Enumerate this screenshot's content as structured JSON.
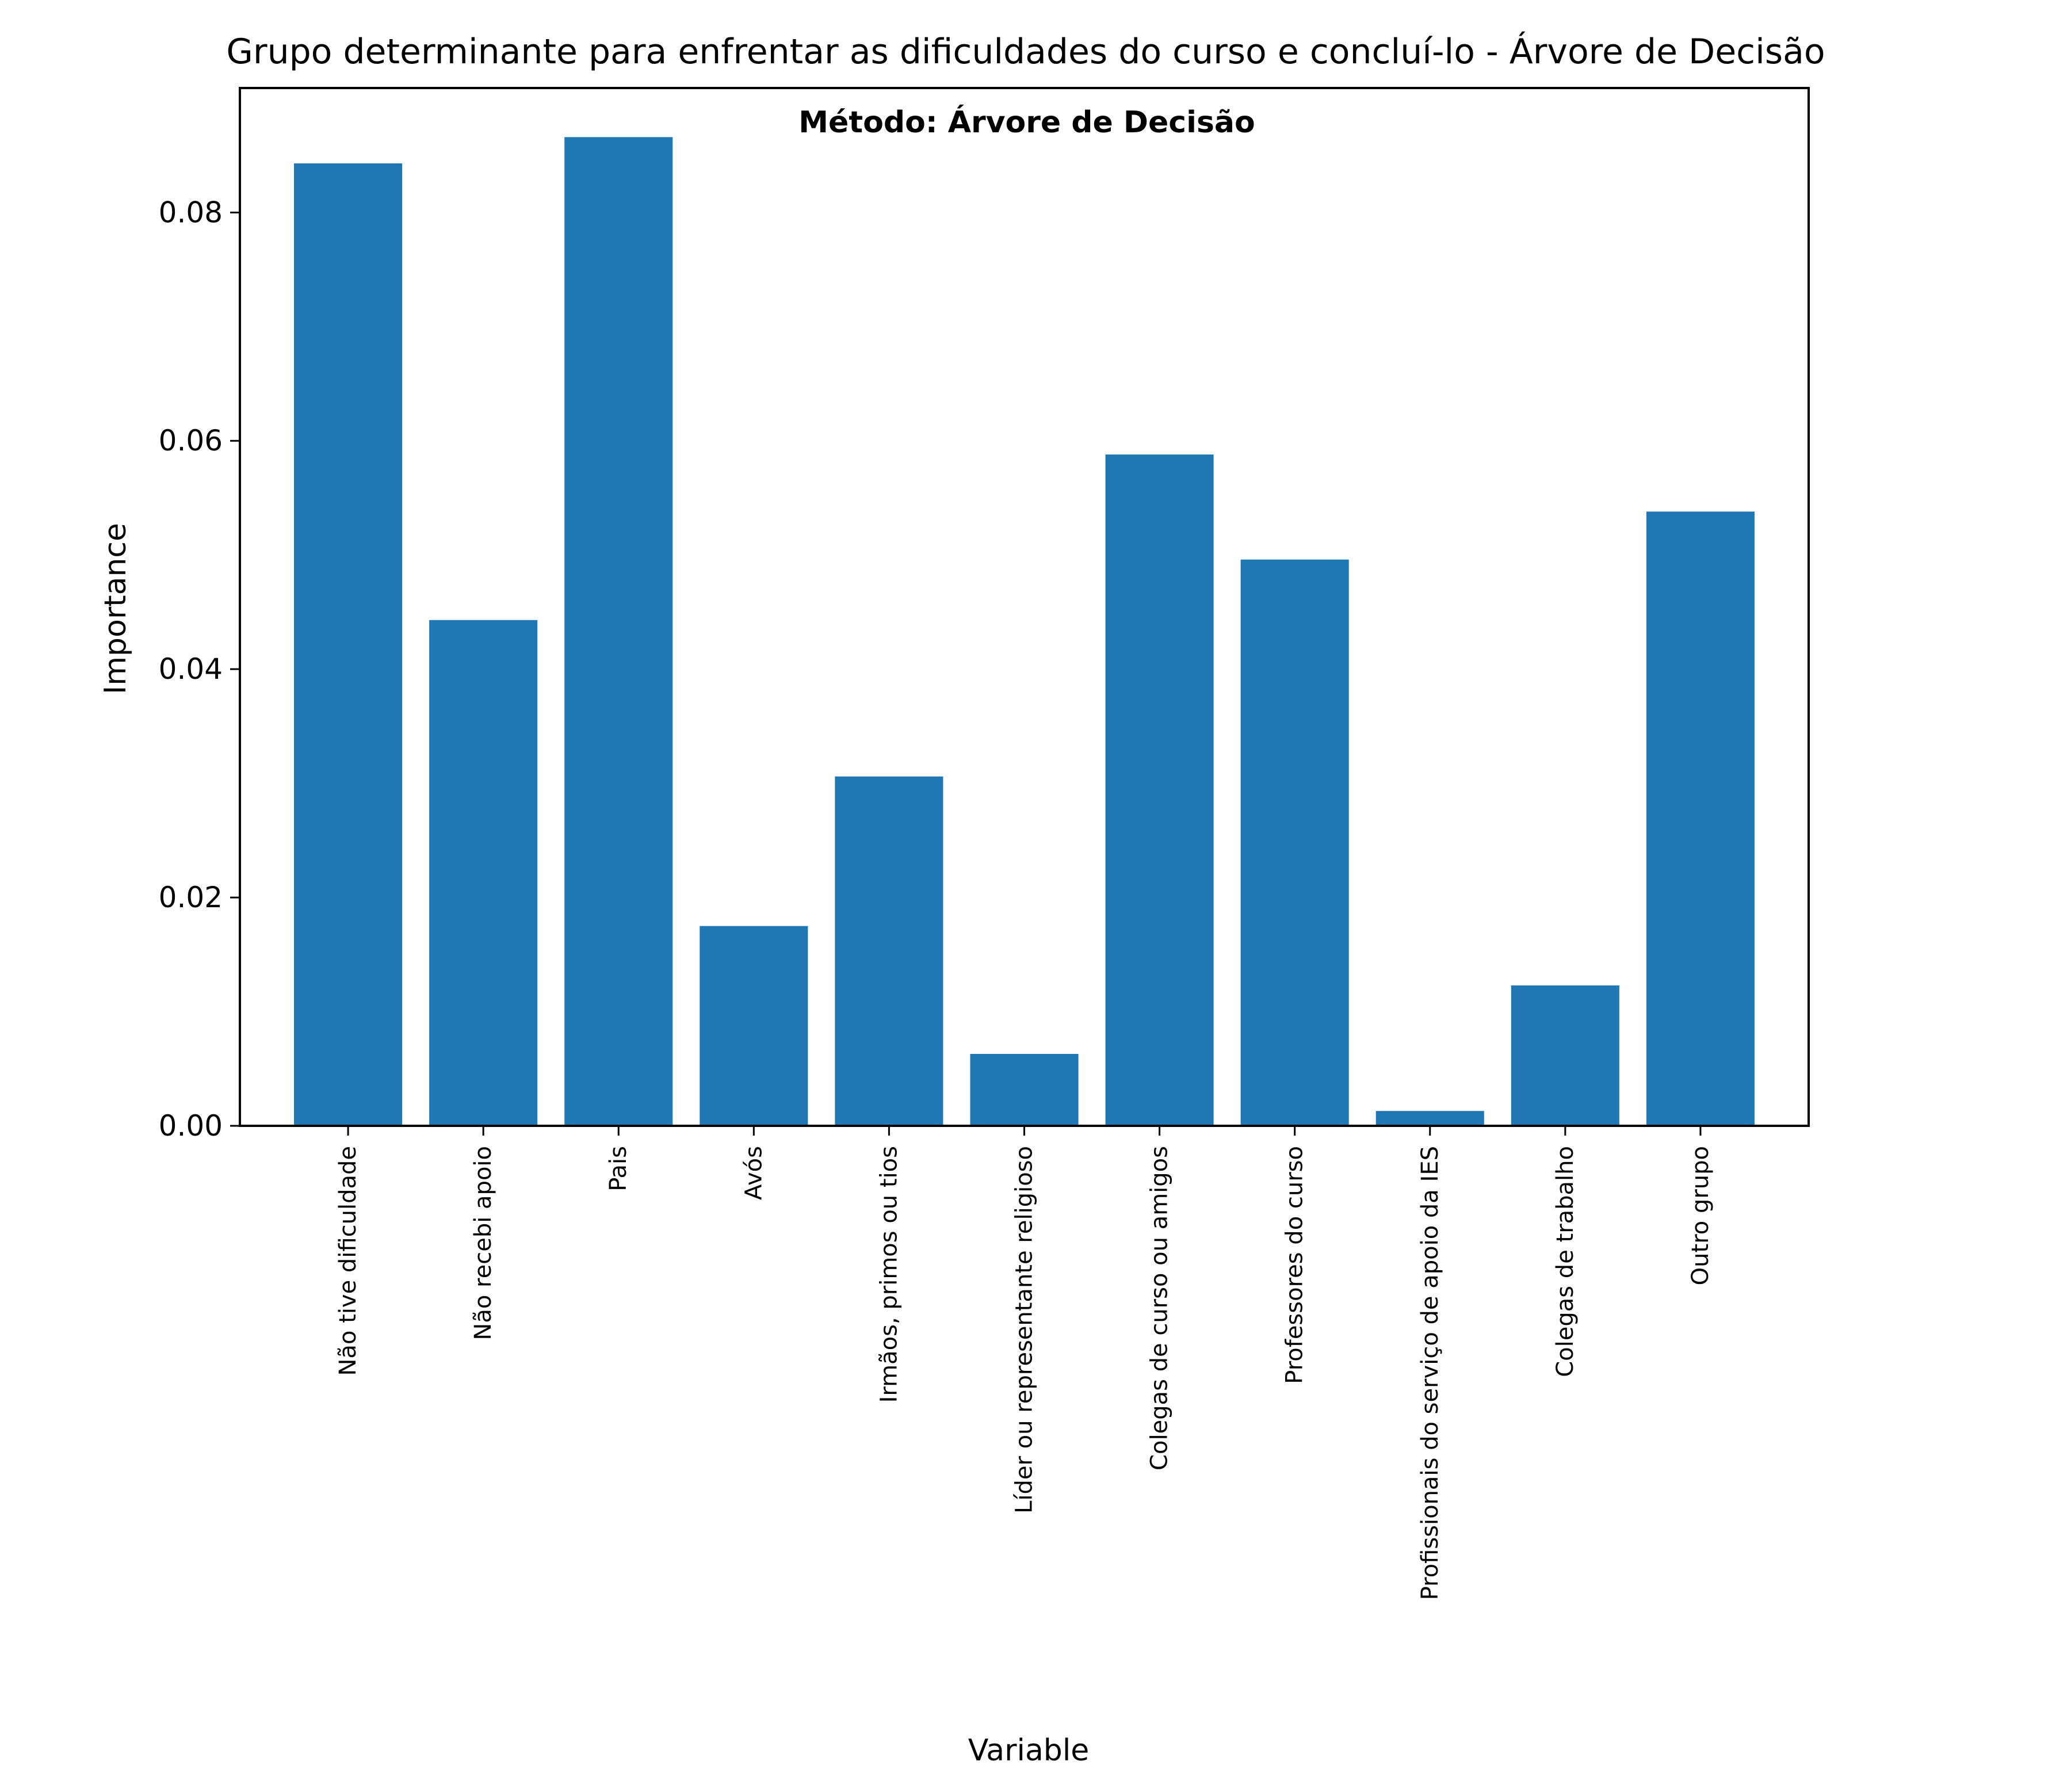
{
  "chart_data": {
    "type": "bar",
    "title": "Grupo determinante para enfrentar as dificuldades do curso e concluí-lo - Árvore de Decisão",
    "annotation": "Método: Árvore de Decisão",
    "xlabel": "Variable",
    "ylabel": "Importance",
    "ylim": [
      0,
      0.0909
    ],
    "yticks": [
      {
        "value": 0.0,
        "label": "0.00"
      },
      {
        "value": 0.02,
        "label": "0.02"
      },
      {
        "value": 0.04,
        "label": "0.04"
      },
      {
        "value": 0.06,
        "label": "0.06"
      },
      {
        "value": 0.08,
        "label": "0.08"
      }
    ],
    "categories": [
      "Não tive dificuldade",
      "Não recebi apoio",
      "Pais",
      "Avós",
      "Irmãos, primos ou tios",
      "Líder ou representante religioso",
      "Colegas de curso ou amigos",
      "Professores do curso",
      "Profissionais do serviço de apoio da IES",
      "Colegas de trabalho",
      "Outro grupo"
    ],
    "values": [
      0.0843,
      0.0443,
      0.0866,
      0.0175,
      0.0306,
      0.0063,
      0.0588,
      0.0496,
      0.0013,
      0.0123,
      0.0538
    ],
    "bar_color": "#1f77b4",
    "grid": false,
    "legend": "none"
  }
}
